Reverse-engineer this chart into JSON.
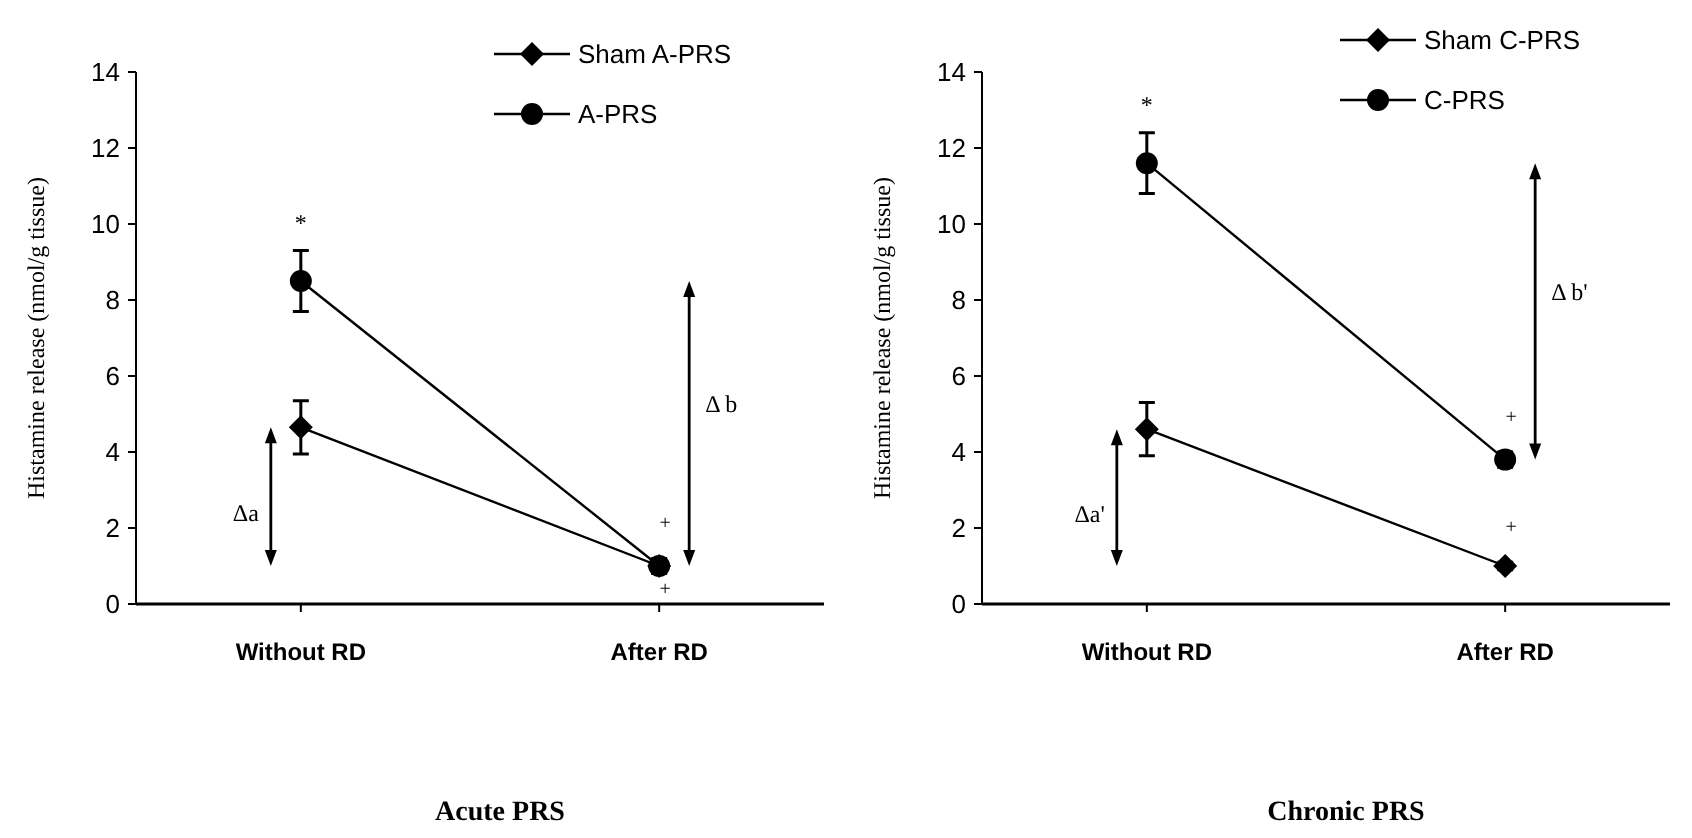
{
  "chart_data": [
    {
      "type": "line",
      "title": "Acute PRS",
      "ylabel": "Histamine release (nmol/g tissue)",
      "categories": [
        "Without RD",
        "After RD"
      ],
      "ylim": [
        0,
        14
      ],
      "yticks": [
        0,
        2,
        4,
        6,
        8,
        10,
        12,
        14
      ],
      "grid": false,
      "legend": "top right",
      "series": [
        {
          "name": "Sham A-PRS",
          "color": "#000000",
          "marker": "diamond",
          "values": [
            4.65,
            1.0
          ],
          "errors": [
            0.7,
            0.15
          ]
        },
        {
          "name": "A-PRS",
          "color": "#000000",
          "marker": "circle",
          "values": [
            8.5,
            1.0
          ],
          "errors": [
            0.8,
            0.2
          ]
        }
      ],
      "annotations": [
        "*",
        "+",
        "+",
        "Δa",
        "Δ b"
      ]
    },
    {
      "type": "line",
      "title": "Chronic PRS",
      "ylabel": "Histamine release (nmol/g tissue)",
      "categories": [
        "Without RD",
        "After RD"
      ],
      "ylim": [
        0,
        14
      ],
      "yticks": [
        0,
        2,
        4,
        6,
        8,
        10,
        12,
        14
      ],
      "grid": false,
      "legend": "top right",
      "series": [
        {
          "name": "Sham C-PRS",
          "color": "#000000",
          "marker": "diamond",
          "values": [
            4.6,
            1.0
          ],
          "errors": [
            0.7,
            0.1
          ]
        },
        {
          "name": "C-PRS",
          "color": "#000000",
          "marker": "circle",
          "values": [
            11.6,
            3.8
          ],
          "errors": [
            0.8,
            0.2
          ]
        }
      ],
      "annotations": [
        "*",
        "+",
        "+",
        "Δa'",
        "Δ b'"
      ]
    }
  ]
}
